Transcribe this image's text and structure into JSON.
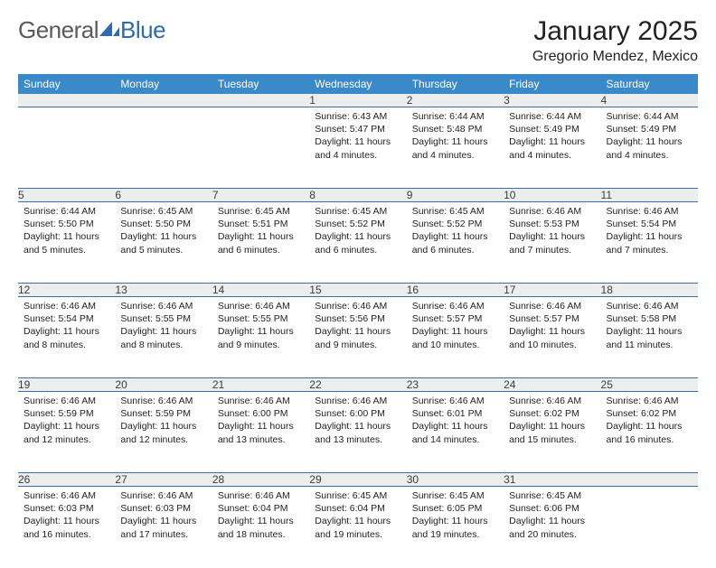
{
  "logo": {
    "text_general": "General",
    "text_blue": "Blue"
  },
  "title": "January 2025",
  "location": "Gregorio Mendez, Mexico",
  "colors": {
    "header_bg": "#3a8ac9",
    "header_text": "#ffffff",
    "daynum_bg": "#eceeee",
    "rule": "#3a6fa3",
    "logo_gray": "#5a5a5a",
    "logo_blue": "#2b6bb0"
  },
  "day_headers": [
    "Sunday",
    "Monday",
    "Tuesday",
    "Wednesday",
    "Thursday",
    "Friday",
    "Saturday"
  ],
  "weeks": [
    [
      null,
      null,
      null,
      {
        "n": "1",
        "sunrise": "6:43 AM",
        "sunset": "5:47 PM",
        "daylight": "11 hours and 4 minutes."
      },
      {
        "n": "2",
        "sunrise": "6:44 AM",
        "sunset": "5:48 PM",
        "daylight": "11 hours and 4 minutes."
      },
      {
        "n": "3",
        "sunrise": "6:44 AM",
        "sunset": "5:49 PM",
        "daylight": "11 hours and 4 minutes."
      },
      {
        "n": "4",
        "sunrise": "6:44 AM",
        "sunset": "5:49 PM",
        "daylight": "11 hours and 4 minutes."
      }
    ],
    [
      {
        "n": "5",
        "sunrise": "6:44 AM",
        "sunset": "5:50 PM",
        "daylight": "11 hours and 5 minutes."
      },
      {
        "n": "6",
        "sunrise": "6:45 AM",
        "sunset": "5:50 PM",
        "daylight": "11 hours and 5 minutes."
      },
      {
        "n": "7",
        "sunrise": "6:45 AM",
        "sunset": "5:51 PM",
        "daylight": "11 hours and 6 minutes."
      },
      {
        "n": "8",
        "sunrise": "6:45 AM",
        "sunset": "5:52 PM",
        "daylight": "11 hours and 6 minutes."
      },
      {
        "n": "9",
        "sunrise": "6:45 AM",
        "sunset": "5:52 PM",
        "daylight": "11 hours and 6 minutes."
      },
      {
        "n": "10",
        "sunrise": "6:46 AM",
        "sunset": "5:53 PM",
        "daylight": "11 hours and 7 minutes."
      },
      {
        "n": "11",
        "sunrise": "6:46 AM",
        "sunset": "5:54 PM",
        "daylight": "11 hours and 7 minutes."
      }
    ],
    [
      {
        "n": "12",
        "sunrise": "6:46 AM",
        "sunset": "5:54 PM",
        "daylight": "11 hours and 8 minutes."
      },
      {
        "n": "13",
        "sunrise": "6:46 AM",
        "sunset": "5:55 PM",
        "daylight": "11 hours and 8 minutes."
      },
      {
        "n": "14",
        "sunrise": "6:46 AM",
        "sunset": "5:55 PM",
        "daylight": "11 hours and 9 minutes."
      },
      {
        "n": "15",
        "sunrise": "6:46 AM",
        "sunset": "5:56 PM",
        "daylight": "11 hours and 9 minutes."
      },
      {
        "n": "16",
        "sunrise": "6:46 AM",
        "sunset": "5:57 PM",
        "daylight": "11 hours and 10 minutes."
      },
      {
        "n": "17",
        "sunrise": "6:46 AM",
        "sunset": "5:57 PM",
        "daylight": "11 hours and 10 minutes."
      },
      {
        "n": "18",
        "sunrise": "6:46 AM",
        "sunset": "5:58 PM",
        "daylight": "11 hours and 11 minutes."
      }
    ],
    [
      {
        "n": "19",
        "sunrise": "6:46 AM",
        "sunset": "5:59 PM",
        "daylight": "11 hours and 12 minutes."
      },
      {
        "n": "20",
        "sunrise": "6:46 AM",
        "sunset": "5:59 PM",
        "daylight": "11 hours and 12 minutes."
      },
      {
        "n": "21",
        "sunrise": "6:46 AM",
        "sunset": "6:00 PM",
        "daylight": "11 hours and 13 minutes."
      },
      {
        "n": "22",
        "sunrise": "6:46 AM",
        "sunset": "6:00 PM",
        "daylight": "11 hours and 13 minutes."
      },
      {
        "n": "23",
        "sunrise": "6:46 AM",
        "sunset": "6:01 PM",
        "daylight": "11 hours and 14 minutes."
      },
      {
        "n": "24",
        "sunrise": "6:46 AM",
        "sunset": "6:02 PM",
        "daylight": "11 hours and 15 minutes."
      },
      {
        "n": "25",
        "sunrise": "6:46 AM",
        "sunset": "6:02 PM",
        "daylight": "11 hours and 16 minutes."
      }
    ],
    [
      {
        "n": "26",
        "sunrise": "6:46 AM",
        "sunset": "6:03 PM",
        "daylight": "11 hours and 16 minutes."
      },
      {
        "n": "27",
        "sunrise": "6:46 AM",
        "sunset": "6:03 PM",
        "daylight": "11 hours and 17 minutes."
      },
      {
        "n": "28",
        "sunrise": "6:46 AM",
        "sunset": "6:04 PM",
        "daylight": "11 hours and 18 minutes."
      },
      {
        "n": "29",
        "sunrise": "6:45 AM",
        "sunset": "6:04 PM",
        "daylight": "11 hours and 19 minutes."
      },
      {
        "n": "30",
        "sunrise": "6:45 AM",
        "sunset": "6:05 PM",
        "daylight": "11 hours and 19 minutes."
      },
      {
        "n": "31",
        "sunrise": "6:45 AM",
        "sunset": "6:06 PM",
        "daylight": "11 hours and 20 minutes."
      },
      null
    ]
  ],
  "labels": {
    "sunrise": "Sunrise:",
    "sunset": "Sunset:",
    "daylight": "Daylight:"
  }
}
